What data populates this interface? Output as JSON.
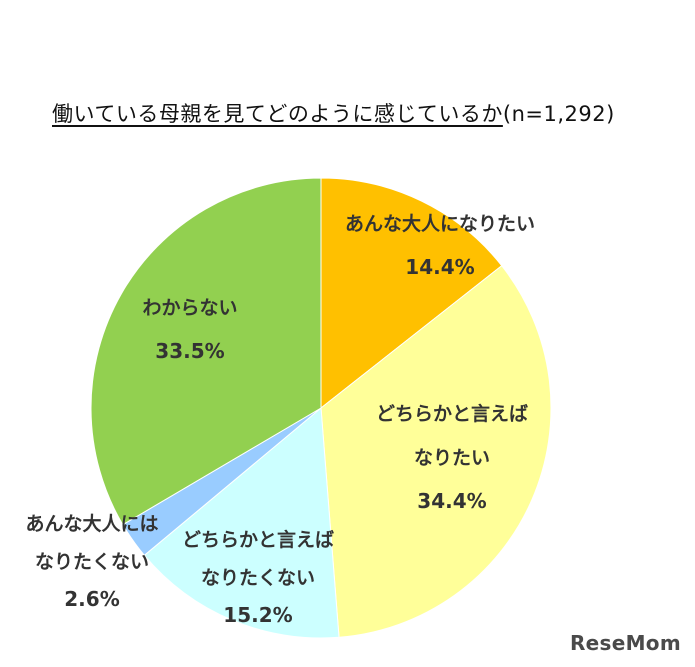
{
  "chart_data": {
    "type": "pie",
    "title": "働いている母親を見てどのように感じているか",
    "subtitle": "(n=1,292)",
    "slices": [
      {
        "label_lines": [
          "あんな大人になりたい"
        ],
        "value_text": "14.4%",
        "value": 14.4,
        "color": "#FFC000"
      },
      {
        "label_lines": [
          "どちらかと言えば",
          "なりたい"
        ],
        "value_text": "34.4%",
        "value": 34.4,
        "color": "#FFFF99"
      },
      {
        "label_lines": [
          "どちらかと言えば",
          "なりたくない"
        ],
        "value_text": "15.2%",
        "value": 15.2,
        "color": "#CCFFFF"
      },
      {
        "label_lines": [
          "あんな大人には",
          "なりたくない"
        ],
        "value_text": "2.6%",
        "value": 2.6,
        "color": "#99CCFF"
      },
      {
        "label_lines": [
          "わからない"
        ],
        "value_text": "33.5%",
        "value": 33.5,
        "color": "#92D050"
      }
    ]
  },
  "watermark": "ReseMom"
}
